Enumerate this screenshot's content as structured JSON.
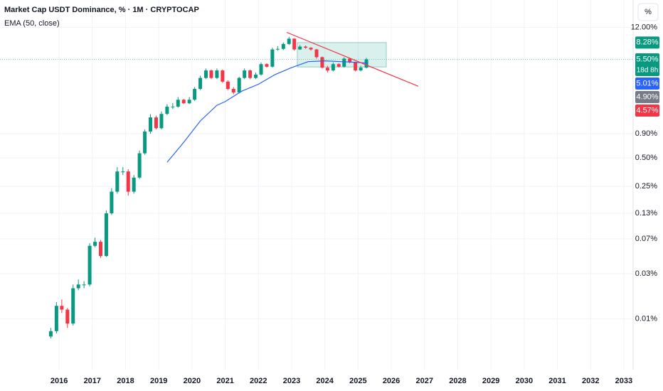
{
  "chart_data": {
    "type": "candlestick",
    "title": "Market Cap USDT Dominance, % · 1M · CRYPTOCAP",
    "indicator_label": "EMA (50, close)",
    "scale_mode_label": "%",
    "log_scale": true,
    "grid": true,
    "up_color": "#089981",
    "down_color": "#f23645",
    "xlim": [
      2014.22,
      2033.28
    ],
    "ylim": [
      0.0029,
      23.3
    ],
    "xticks": [
      2016,
      2017,
      2018,
      2019,
      2020,
      2021,
      2022,
      2023,
      2024,
      2025,
      2026,
      2027,
      2028,
      2029,
      2030,
      2031,
      2032,
      2033
    ],
    "yticks": [
      {
        "value": 12,
        "label": "12.00%"
      },
      {
        "value": 0.9,
        "label": "0.90%"
      },
      {
        "value": 0.5,
        "label": "0.50%"
      },
      {
        "value": 0.25,
        "label": "0.25%"
      },
      {
        "value": 0.13,
        "label": "0.13%"
      },
      {
        "value": 0.07,
        "label": "0.07%"
      },
      {
        "value": 0.03,
        "label": "0.03%"
      },
      {
        "value": 0.01,
        "label": "0.01%"
      }
    ],
    "x": [
      2015.75,
      2015.92,
      2016.08,
      2016.25,
      2016.42,
      2016.58,
      2016.75,
      2016.92,
      2017.08,
      2017.25,
      2017.42,
      2017.58,
      2017.75,
      2017.92,
      2018.08,
      2018.25,
      2018.42,
      2018.58,
      2018.75,
      2018.92,
      2019.08,
      2019.25,
      2019.42,
      2019.58,
      2019.75,
      2019.92,
      2020.08,
      2020.25,
      2020.42,
      2020.58,
      2020.75,
      2020.92,
      2021.08,
      2021.25,
      2021.42,
      2021.58,
      2021.75,
      2021.92,
      2022.08,
      2022.25,
      2022.42,
      2022.58,
      2022.75,
      2022.92,
      2023.08,
      2023.25,
      2023.42,
      2023.58,
      2023.75,
      2023.92,
      2024.08,
      2024.25,
      2024.42,
      2024.58,
      2024.75,
      2024.92,
      2025.08,
      2025.25
    ],
    "open": [
      0.0065,
      0.0074,
      0.0137,
      0.0125,
      0.0089,
      0.021,
      0.023,
      0.023,
      0.059,
      0.065,
      0.046,
      0.13,
      0.22,
      0.36,
      0.36,
      0.22,
      0.31,
      0.56,
      0.95,
      1.34,
      1.03,
      1.46,
      1.74,
      1.74,
      2.06,
      1.89,
      2.06,
      2.68,
      3.5,
      4.2,
      3.5,
      4.2,
      3.2,
      2.68,
      2.46,
      3.5,
      4.2,
      3.5,
      3.8,
      4.9,
      4.6,
      7.0,
      7.1,
      8.0,
      9.1,
      7.0,
      7.5,
      7.3,
      7.0,
      5.8,
      4.5,
      4.2,
      4.9,
      4.6,
      5.6,
      5.1,
      4.2,
      4.5
    ],
    "high": [
      0.008,
      0.015,
      0.016,
      0.013,
      0.023,
      0.026,
      0.025,
      0.063,
      0.072,
      0.068,
      0.14,
      0.24,
      0.4,
      0.4,
      0.38,
      0.33,
      0.6,
      1.0,
      1.45,
      1.4,
      1.55,
      1.85,
      1.9,
      2.2,
      2.1,
      2.2,
      2.8,
      3.7,
      4.4,
      4.3,
      4.4,
      4.3,
      3.3,
      2.8,
      3.6,
      4.4,
      4.3,
      4.0,
      5.1,
      5.0,
      7.3,
      7.6,
      8.3,
      9.5,
      9.2,
      7.8,
      7.7,
      7.4,
      7.1,
      5.9,
      4.7,
      5.1,
      5.0,
      5.8,
      5.7,
      5.2,
      4.7,
      5.7
    ],
    "low": [
      0.0062,
      0.007,
      0.0115,
      0.008,
      0.0085,
      0.02,
      0.021,
      0.022,
      0.057,
      0.044,
      0.045,
      0.125,
      0.21,
      0.33,
      0.2,
      0.21,
      0.3,
      0.54,
      0.9,
      1.0,
      1.0,
      1.42,
      1.65,
      1.7,
      1.85,
      1.85,
      2.0,
      2.6,
      3.4,
      3.4,
      3.4,
      3.1,
      2.6,
      2.35,
      2.4,
      3.4,
      3.4,
      3.4,
      3.7,
      4.5,
      4.5,
      6.8,
      6.9,
      7.8,
      6.8,
      6.9,
      7.1,
      6.8,
      5.6,
      4.4,
      4.0,
      4.1,
      4.5,
      4.5,
      5.0,
      4.1,
      4.1,
      4.4
    ],
    "close": [
      0.0074,
      0.0137,
      0.0125,
      0.0089,
      0.021,
      0.023,
      0.023,
      0.059,
      0.065,
      0.046,
      0.13,
      0.22,
      0.36,
      0.36,
      0.22,
      0.31,
      0.56,
      0.95,
      1.34,
      1.03,
      1.46,
      1.74,
      1.74,
      2.06,
      1.89,
      2.06,
      2.68,
      3.5,
      4.2,
      3.5,
      4.2,
      3.2,
      2.68,
      2.46,
      3.5,
      4.2,
      3.5,
      3.8,
      4.9,
      4.6,
      7.0,
      7.1,
      8.0,
      9.1,
      7.0,
      7.5,
      7.3,
      7.0,
      5.8,
      4.5,
      4.2,
      4.9,
      4.6,
      5.6,
      5.1,
      4.2,
      4.5,
      5.5
    ],
    "ema": {
      "color": "#2962ff",
      "x": [
        2019.25,
        2019.75,
        2020.25,
        2020.75,
        2021.0,
        2021.5,
        2022.0,
        2022.5,
        2023.0,
        2023.5,
        2024.0,
        2024.5,
        2025.0,
        2025.3
      ],
      "values": [
        0.45,
        0.73,
        1.23,
        1.8,
        1.97,
        2.54,
        3.0,
        3.8,
        4.5,
        5.2,
        5.3,
        5.2,
        5.1,
        5.01
      ]
    },
    "trendline": {
      "color": "#f23645",
      "x": [
        2022.85,
        2026.81
      ],
      "values": [
        10.6,
        2.86
      ]
    },
    "zone": {
      "color": "#089981",
      "x": [
        2023.17,
        2025.85
      ],
      "values": [
        4.57,
        8.28
      ]
    },
    "price_labels": [
      {
        "value": 8.28,
        "label": "8.28%",
        "color": "#089981"
      },
      {
        "value": 5.5,
        "label": "5.50%",
        "color": "#089981",
        "countdown": "18d 8h"
      },
      {
        "value": 5.01,
        "label": "5.01%",
        "color": "#2962ff"
      },
      {
        "value": 4.9,
        "label": "4.90%",
        "color": "#787b86"
      },
      {
        "value": 4.57,
        "label": "4.57%",
        "color": "#f23645"
      }
    ]
  }
}
